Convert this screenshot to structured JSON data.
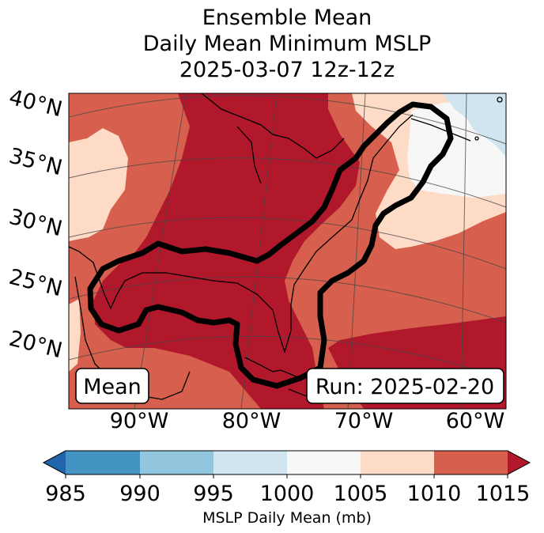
{
  "title": {
    "line1": "Ensemble Mean",
    "line2": "Daily Mean Minimum MSLP",
    "line3": "2025-03-07 12z-12z"
  },
  "map": {
    "lat_labels": [
      "40°N",
      "35°N",
      "30°N",
      "25°N",
      "20°N"
    ],
    "lon_labels": [
      "90°W",
      "80°W",
      "70°W",
      "60°W"
    ],
    "left_label": "Mean",
    "right_label": "Run: 2025-02-20"
  },
  "colorbar": {
    "label": "MSLP Daily Mean (mb)",
    "ticks": [
      "985",
      "990",
      "995",
      "1000",
      "1005",
      "1010",
      "1015"
    ],
    "colors": {
      "under": "#2166ac",
      "c985_990": "#4393c3",
      "c990_995": "#92c5de",
      "c995_1000": "#d1e5f0",
      "c1000_1005": "#f7f7f7",
      "c1005_1010": "#fddbc7",
      "c1010_1015": "#d6604d",
      "over": "#b2182b"
    }
  }
}
